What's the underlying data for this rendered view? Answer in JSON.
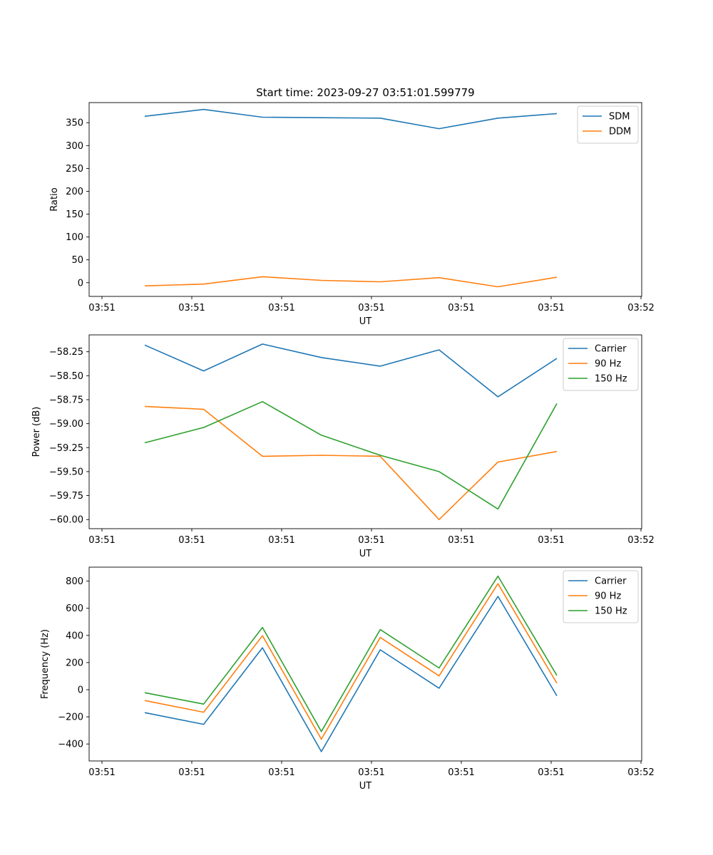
{
  "chart_data": [
    {
      "type": "line",
      "title": "Start time: 2023-09-27 03:51:01.599779",
      "xlabel": "UT",
      "ylabel": "Ratio",
      "x": [
        0,
        1,
        2,
        3,
        4,
        5,
        6,
        7
      ],
      "xticks": [
        "03:51",
        "03:51",
        "03:51",
        "03:51",
        "03:51",
        "03:51",
        "03:52"
      ],
      "yticks": [
        0,
        50,
        100,
        150,
        200,
        250,
        300,
        350
      ],
      "ylim": [
        -30,
        394
      ],
      "legend": "top-right",
      "grid": false,
      "series": [
        {
          "name": "SDM",
          "color": "#1f77b4",
          "values": [
            364,
            379,
            362,
            361,
            360,
            337,
            360,
            370
          ]
        },
        {
          "name": "DDM",
          "color": "#ff7f0e",
          "values": [
            -7,
            -3,
            13,
            5,
            2,
            11,
            -9,
            12
          ]
        }
      ]
    },
    {
      "type": "line",
      "title": "",
      "xlabel": "UT",
      "ylabel": "Power (dB)",
      "x": [
        0,
        1,
        2,
        3,
        4,
        5,
        6,
        7
      ],
      "xticks": [
        "03:51",
        "03:51",
        "03:51",
        "03:51",
        "03:51",
        "03:51",
        "03:52"
      ],
      "yticks": [
        -60.0,
        -59.75,
        -59.5,
        -59.25,
        -59.0,
        -58.75,
        -58.5,
        -58.25
      ],
      "ytick_labels": [
        "−60.00",
        "−59.75",
        "−59.50",
        "−59.25",
        "−59.00",
        "−58.75",
        "−58.50",
        "−58.25"
      ],
      "ylim": [
        -60.095,
        -58.074
      ],
      "legend": "top-right",
      "grid": false,
      "series": [
        {
          "name": "Carrier",
          "color": "#1f77b4",
          "values": [
            -58.18,
            -58.45,
            -58.17,
            -58.31,
            -58.4,
            -58.23,
            -58.72,
            -58.32
          ]
        },
        {
          "name": "90 Hz",
          "color": "#ff7f0e",
          "values": [
            -58.82,
            -58.85,
            -59.34,
            -59.33,
            -59.34,
            -60.0,
            -59.4,
            -59.29
          ]
        },
        {
          "name": "150 Hz",
          "color": "#2ca02c",
          "values": [
            -59.2,
            -59.04,
            -58.77,
            -59.12,
            -59.33,
            -59.5,
            -59.89,
            -58.79
          ]
        }
      ]
    },
    {
      "type": "line",
      "title": "",
      "xlabel": "UT",
      "ylabel": "Frequency (Hz)",
      "x": [
        0,
        1,
        2,
        3,
        4,
        5,
        6,
        7
      ],
      "xticks": [
        "03:51",
        "03:51",
        "03:51",
        "03:51",
        "03:51",
        "03:51",
        "03:52"
      ],
      "yticks": [
        -400,
        -200,
        0,
        200,
        400,
        600,
        800
      ],
      "ytick_labels": [
        "−400",
        "−200",
        "0",
        "200",
        "400",
        "600",
        "800"
      ],
      "ylim": [
        -525,
        903
      ],
      "legend": "top-right",
      "grid": false,
      "series": [
        {
          "name": "Carrier",
          "color": "#1f77b4",
          "values": [
            -169,
            -255,
            309,
            -456,
            294,
            11,
            688,
            -45
          ]
        },
        {
          "name": "90 Hz",
          "color": "#ff7f0e",
          "values": [
            -80,
            -166,
            398,
            -365,
            385,
            102,
            781,
            48
          ]
        },
        {
          "name": "150 Hz",
          "color": "#2ca02c",
          "values": [
            -22,
            -106,
            459,
            -308,
            443,
            160,
            837,
            105
          ]
        }
      ]
    }
  ]
}
